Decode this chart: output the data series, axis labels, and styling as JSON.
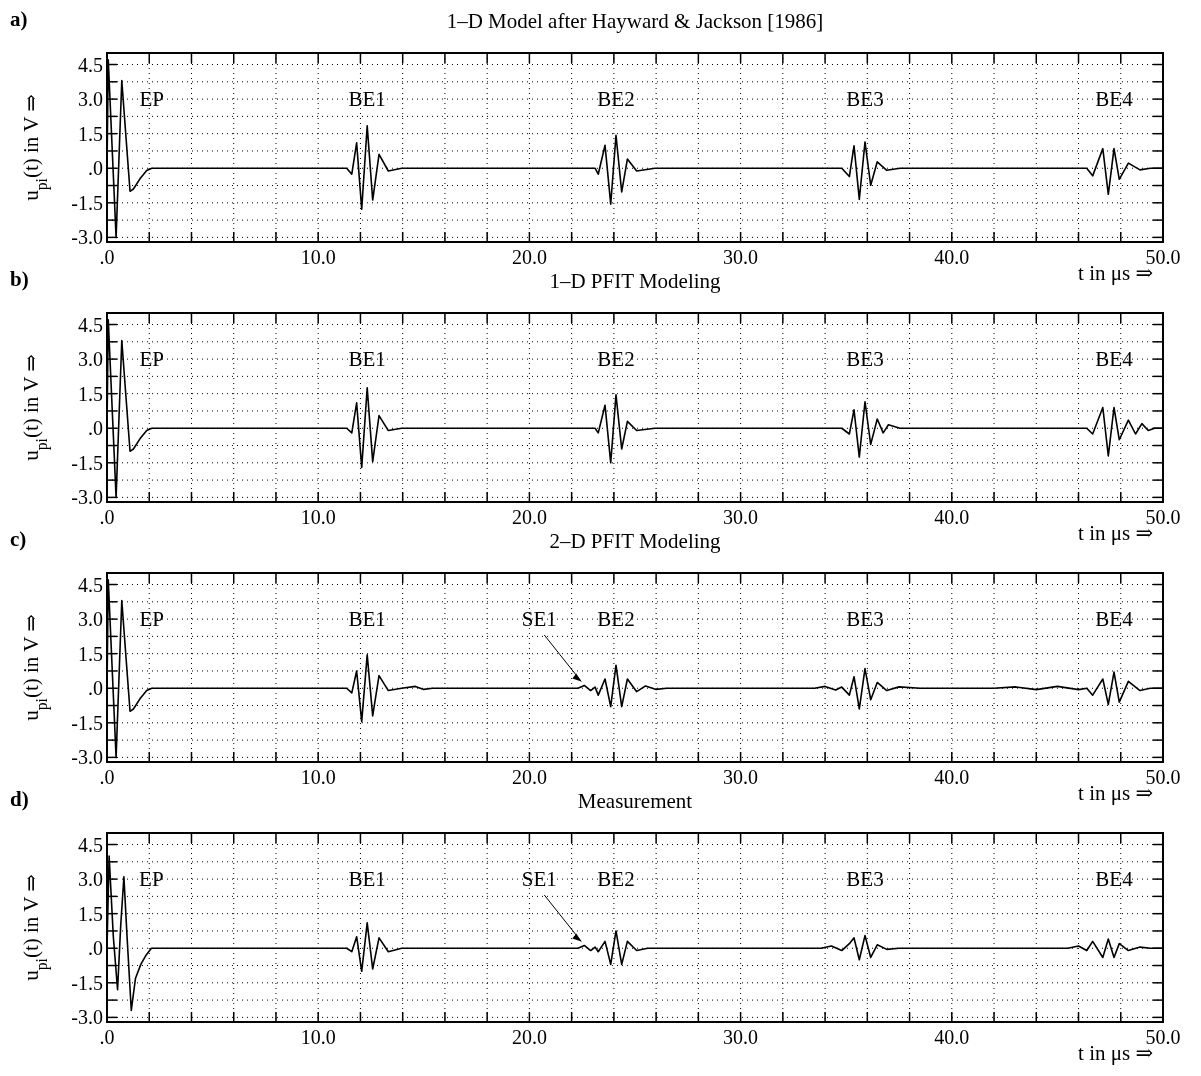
{
  "chart_data": [
    {
      "type": "line",
      "title": "1–D Model after Hayward & Jackson [1986]",
      "xlabel": "t in μs ⇒",
      "ylabel": "u$_{pi}$(t) in V ⇒",
      "xlim": [
        0,
        50
      ],
      "ylim": [
        -3.2,
        5.0
      ],
      "xticks": [
        {
          "value": 0,
          "label": ".0"
        },
        {
          "value": 2,
          "label": null
        },
        {
          "value": 4,
          "label": null
        },
        {
          "value": 6,
          "label": null
        },
        {
          "value": 8,
          "label": null
        },
        {
          "value": 10,
          "label": "10.0"
        },
        {
          "value": 12,
          "label": null
        },
        {
          "value": 14,
          "label": null
        },
        {
          "value": 16,
          "label": null
        },
        {
          "value": 18,
          "label": null
        },
        {
          "value": 20,
          "label": "20.0"
        },
        {
          "value": 22,
          "label": null
        },
        {
          "value": 24,
          "label": null
        },
        {
          "value": 26,
          "label": null
        },
        {
          "value": 28,
          "label": null
        },
        {
          "value": 30,
          "label": "30.0"
        },
        {
          "value": 32,
          "label": null
        },
        {
          "value": 34,
          "label": null
        },
        {
          "value": 36,
          "label": null
        },
        {
          "value": 38,
          "label": null
        },
        {
          "value": 40,
          "label": "40.0"
        },
        {
          "value": 42,
          "label": null
        },
        {
          "value": 44,
          "label": null
        },
        {
          "value": 46,
          "label": null
        },
        {
          "value": 48,
          "label": null
        },
        {
          "value": 50,
          "label": "50.0"
        }
      ],
      "yticks": [
        {
          "value": -3,
          "label": "-3.0"
        },
        {
          "value": -2.25,
          "label": null
        },
        {
          "value": -1.5,
          "label": "-1.5"
        },
        {
          "value": -0.75,
          "label": null
        },
        {
          "value": 0,
          "label": ".0"
        },
        {
          "value": 0.75,
          "label": null
        },
        {
          "value": 1.5,
          "label": "1.5"
        },
        {
          "value": 2.25,
          "label": null
        },
        {
          "value": 3,
          "label": "3.0"
        },
        {
          "value": 3.75,
          "label": null
        },
        {
          "value": 4.5,
          "label": "4.5"
        }
      ],
      "grid": true,
      "annotations": [
        "a)",
        {
          "text": "EP",
          "x": 2.12,
          "y": 0
        },
        {
          "text": "BE1",
          "x": 12.32,
          "y": 1.84
        },
        {
          "text": "BE2",
          "x": 24.1,
          "y": 1.43
        },
        {
          "text": "BE3",
          "x": 35.89,
          "y": 1.14
        },
        {
          "text": "BE4",
          "x": 47.68,
          "y": 0.85
        }
      ],
      "series": [
        {
          "color": "#000000",
          "x": [
            0,
            0.06,
            0.43,
            0.7,
            0.93,
            1.02,
            1.09,
            1.25,
            1.56,
            1.88,
            2.12,
            11.35,
            11.59,
            11.82,
            12.06,
            12.32,
            12.58,
            12.88,
            13.32,
            13.95,
            23.11,
            23.26,
            23.58,
            23.85,
            24.1,
            24.37,
            24.64,
            25.08,
            25.95,
            34.79,
            35.15,
            35.37,
            35.62,
            35.89,
            36.16,
            36.47,
            36.92,
            37.55,
            46.39,
            46.67,
            47.15,
            47.41,
            47.68,
            47.93,
            48.36,
            48.91,
            49.4,
            50
          ],
          "values": [
            0,
            4.7,
            -3.0,
            3.8,
            null,
            null,
            -1.0,
            -0.9,
            -0.46,
            -0.1,
            0,
            0,
            -0.26,
            1.1,
            -1.78,
            1.84,
            -1.38,
            0.6,
            -0.12,
            0,
            0,
            -0.26,
            1.0,
            -1.56,
            1.43,
            -1.03,
            0.4,
            -0.12,
            0,
            0,
            -0.36,
            0.97,
            -1.35,
            1.14,
            -0.74,
            0.28,
            -0.09,
            0,
            0,
            -0.33,
            0.85,
            -1.13,
            0.85,
            -0.48,
            0.22,
            -0.07,
            0,
            0
          ]
        }
      ]
    },
    {
      "type": "line",
      "title": "1–D PFIT Modeling",
      "xlabel": "t in μs ⇒",
      "ylabel": "u$_{pi}$(t) in V ⇒",
      "xlim": [
        0,
        50
      ],
      "ylim": [
        -3.2,
        5.0
      ],
      "xticks": [
        {
          "value": 0,
          "label": ".0"
        },
        {
          "value": 2,
          "label": null
        },
        {
          "value": 4,
          "label": null
        },
        {
          "value": 6,
          "label": null
        },
        {
          "value": 8,
          "label": null
        },
        {
          "value": 10,
          "label": "10.0"
        },
        {
          "value": 12,
          "label": null
        },
        {
          "value": 14,
          "label": null
        },
        {
          "value": 16,
          "label": null
        },
        {
          "value": 18,
          "label": null
        },
        {
          "value": 20,
          "label": "20.0"
        },
        {
          "value": 22,
          "label": null
        },
        {
          "value": 24,
          "label": null
        },
        {
          "value": 26,
          "label": null
        },
        {
          "value": 28,
          "label": null
        },
        {
          "value": 30,
          "label": "30.0"
        },
        {
          "value": 32,
          "label": null
        },
        {
          "value": 34,
          "label": null
        },
        {
          "value": 36,
          "label": null
        },
        {
          "value": 38,
          "label": null
        },
        {
          "value": 40,
          "label": "40.0"
        },
        {
          "value": 42,
          "label": null
        },
        {
          "value": 44,
          "label": null
        },
        {
          "value": 46,
          "label": null
        },
        {
          "value": 48,
          "label": null
        },
        {
          "value": 50,
          "label": "50.0"
        }
      ],
      "yticks": [
        {
          "value": -3,
          "label": "-3.0"
        },
        {
          "value": -2.25,
          "label": null
        },
        {
          "value": -1.5,
          "label": "-1.5"
        },
        {
          "value": -0.75,
          "label": null
        },
        {
          "value": 0,
          "label": ".0"
        },
        {
          "value": 0.75,
          "label": null
        },
        {
          "value": 1.5,
          "label": "1.5"
        },
        {
          "value": 2.25,
          "label": null
        },
        {
          "value": 3,
          "label": "3.0"
        },
        {
          "value": 3.75,
          "label": null
        },
        {
          "value": 4.5,
          "label": "4.5"
        }
      ],
      "grid": true,
      "annotations": [
        "b)",
        {
          "text": "EP",
          "x": 2.12,
          "y": 0
        },
        {
          "text": "BE1",
          "x": 12.32,
          "y": 1.75
        },
        {
          "text": "BE2",
          "x": 24.1,
          "y": 1.45
        },
        {
          "text": "BE3",
          "x": 35.89,
          "y": 1.15
        },
        {
          "text": "BE4",
          "x": 47.68,
          "y": 0.9
        }
      ],
      "series": [
        {
          "color": "#000000",
          "x": [
            0,
            0.06,
            0.43,
            0.7,
            0.93,
            1.02,
            1.09,
            1.25,
            1.56,
            1.88,
            2.12,
            11.35,
            11.59,
            11.82,
            12.06,
            12.32,
            12.58,
            12.88,
            13.32,
            13.95,
            23.11,
            23.26,
            23.58,
            23.85,
            24.1,
            24.37,
            24.64,
            25.08,
            25.95,
            34.79,
            35.15,
            35.37,
            35.62,
            35.89,
            36.16,
            36.47,
            36.75,
            37.0,
            37.55,
            46.39,
            46.67,
            47.15,
            47.41,
            47.68,
            47.93,
            48.36,
            48.7,
            49.0,
            49.3,
            49.6,
            50
          ],
          "values": [
            0,
            4.7,
            -3.0,
            3.8,
            null,
            null,
            -1.0,
            -0.9,
            -0.46,
            -0.1,
            0,
            0,
            -0.2,
            1.1,
            -1.7,
            1.75,
            -1.45,
            0.55,
            -0.1,
            0,
            0,
            -0.2,
            1.0,
            -1.5,
            1.45,
            -0.9,
            0.3,
            -0.1,
            0,
            0,
            -0.25,
            0.8,
            -1.25,
            1.15,
            -0.7,
            0.4,
            -0.2,
            0.15,
            0,
            0,
            -0.25,
            0.9,
            -1.2,
            0.9,
            -0.5,
            0.35,
            -0.25,
            0.2,
            -0.1,
            0,
            0
          ]
        }
      ]
    },
    {
      "type": "line",
      "title": "2–D PFIT Modeling",
      "xlabel": "t in μs ⇒",
      "ylabel": "u$_{pi}$(t) in V ⇒",
      "xlim": [
        0,
        50
      ],
      "ylim": [
        -3.2,
        5.0
      ],
      "xticks": [
        {
          "value": 0,
          "label": ".0"
        },
        {
          "value": 2,
          "label": null
        },
        {
          "value": 4,
          "label": null
        },
        {
          "value": 6,
          "label": null
        },
        {
          "value": 8,
          "label": null
        },
        {
          "value": 10,
          "label": "10.0"
        },
        {
          "value": 12,
          "label": null
        },
        {
          "value": 14,
          "label": null
        },
        {
          "value": 16,
          "label": null
        },
        {
          "value": 18,
          "label": null
        },
        {
          "value": 20,
          "label": "20.0"
        },
        {
          "value": 22,
          "label": null
        },
        {
          "value": 24,
          "label": null
        },
        {
          "value": 26,
          "label": null
        },
        {
          "value": 28,
          "label": null
        },
        {
          "value": 30,
          "label": "30.0"
        },
        {
          "value": 32,
          "label": null
        },
        {
          "value": 34,
          "label": null
        },
        {
          "value": 36,
          "label": null
        },
        {
          "value": 38,
          "label": null
        },
        {
          "value": 40,
          "label": "40.0"
        },
        {
          "value": 42,
          "label": null
        },
        {
          "value": 44,
          "label": null
        },
        {
          "value": 46,
          "label": null
        },
        {
          "value": 48,
          "label": null
        },
        {
          "value": 50,
          "label": "50.0"
        }
      ],
      "yticks": [
        {
          "value": -3,
          "label": "-3.0"
        },
        {
          "value": -2.25,
          "label": null
        },
        {
          "value": -1.5,
          "label": "-1.5"
        },
        {
          "value": -0.75,
          "label": null
        },
        {
          "value": 0,
          "label": ".0"
        },
        {
          "value": 0.75,
          "label": null
        },
        {
          "value": 1.5,
          "label": "1.5"
        },
        {
          "value": 2.25,
          "label": null
        },
        {
          "value": 3,
          "label": "3.0"
        },
        {
          "value": 3.75,
          "label": null
        },
        {
          "value": 4.5,
          "label": "4.5"
        }
      ],
      "grid": true,
      "annotations": [
        "c)",
        {
          "text": "EP",
          "x": 2.12,
          "y": 0
        },
        {
          "text": "BE1",
          "x": 12.32,
          "y": 1.45
        },
        {
          "text": "SE1",
          "x": 22.6,
          "y": 0.12
        },
        {
          "text": "BE2",
          "x": 24.1,
          "y": 1.0
        },
        {
          "text": "BE3",
          "x": 35.89,
          "y": 0.85
        },
        {
          "text": "BE4",
          "x": 47.68,
          "y": 0.7
        }
      ],
      "series": [
        {
          "color": "#000000",
          "x": [
            0,
            0.06,
            0.43,
            0.7,
            0.93,
            1.02,
            1.09,
            1.25,
            1.56,
            1.88,
            2.12,
            11.35,
            11.59,
            11.82,
            12.06,
            12.32,
            12.58,
            12.88,
            13.32,
            13.95,
            14.6,
            15.0,
            15.4,
            22.3,
            22.6,
            22.9,
            23.11,
            23.26,
            23.58,
            23.85,
            24.1,
            24.37,
            24.64,
            25.08,
            25.5,
            26.0,
            26.5,
            33.5,
            34.0,
            34.5,
            34.79,
            35.15,
            35.37,
            35.62,
            35.89,
            36.16,
            36.47,
            36.92,
            37.5,
            38.5,
            42.0,
            43.0,
            44.0,
            45.0,
            46.0,
            46.39,
            46.67,
            47.15,
            47.41,
            47.68,
            47.93,
            48.36,
            48.91,
            49.4,
            50
          ],
          "values": [
            0,
            4.7,
            -3.0,
            3.8,
            null,
            null,
            -1.0,
            -0.9,
            -0.46,
            -0.1,
            0,
            0,
            -0.2,
            0.75,
            -1.45,
            1.45,
            -1.2,
            0.55,
            -0.1,
            0,
            0.08,
            -0.05,
            0,
            0,
            0.12,
            -0.1,
            0.05,
            -0.3,
            0.4,
            -0.8,
            1.0,
            -0.8,
            0.4,
            -0.15,
            0.1,
            -0.05,
            0,
            0,
            0.08,
            -0.08,
            0.05,
            -0.3,
            0.5,
            -0.9,
            0.85,
            -0.5,
            0.25,
            -0.1,
            0.06,
            0,
            0,
            0.06,
            -0.06,
            0.08,
            -0.06,
            0,
            -0.3,
            0.4,
            -0.7,
            0.7,
            -0.6,
            0.3,
            -0.1,
            0,
            0
          ]
        }
      ]
    },
    {
      "type": "line",
      "title": "Measurement",
      "xlabel": "t in μs ⇒",
      "ylabel": "u$_{pi}$(t) in V ⇒",
      "xlim": [
        0,
        50
      ],
      "ylim": [
        -3.2,
        5.0
      ],
      "xticks": [
        {
          "value": 0,
          "label": ".0"
        },
        {
          "value": 2,
          "label": null
        },
        {
          "value": 4,
          "label": null
        },
        {
          "value": 6,
          "label": null
        },
        {
          "value": 8,
          "label": null
        },
        {
          "value": 10,
          "label": "10.0"
        },
        {
          "value": 12,
          "label": null
        },
        {
          "value": 14,
          "label": null
        },
        {
          "value": 16,
          "label": null
        },
        {
          "value": 18,
          "label": null
        },
        {
          "value": 20,
          "label": "20.0"
        },
        {
          "value": 22,
          "label": null
        },
        {
          "value": 24,
          "label": null
        },
        {
          "value": 26,
          "label": null
        },
        {
          "value": 28,
          "label": null
        },
        {
          "value": 30,
          "label": "30.0"
        },
        {
          "value": 32,
          "label": null
        },
        {
          "value": 34,
          "label": null
        },
        {
          "value": 36,
          "label": null
        },
        {
          "value": 38,
          "label": null
        },
        {
          "value": 40,
          "label": "40.0"
        },
        {
          "value": 42,
          "label": null
        },
        {
          "value": 44,
          "label": null
        },
        {
          "value": 46,
          "label": null
        },
        {
          "value": 48,
          "label": null
        },
        {
          "value": 50,
          "label": "50.0"
        }
      ],
      "yticks": [
        {
          "value": -3,
          "label": "-3.0"
        },
        {
          "value": -2.25,
          "label": null
        },
        {
          "value": -1.5,
          "label": "-1.5"
        },
        {
          "value": -0.75,
          "label": null
        },
        {
          "value": 0,
          "label": ".0"
        },
        {
          "value": 0.75,
          "label": null
        },
        {
          "value": 1.5,
          "label": "1.5"
        },
        {
          "value": 2.25,
          "label": null
        },
        {
          "value": 3,
          "label": "3.0"
        },
        {
          "value": 3.75,
          "label": null
        },
        {
          "value": 4.5,
          "label": "4.5"
        }
      ],
      "grid": true,
      "annotations": [
        "d)",
        {
          "text": "EP",
          "x": 2.1,
          "y": 0
        },
        {
          "text": "BE1",
          "x": 12.32,
          "y": 1.1
        },
        {
          "text": "SE1",
          "x": 22.6,
          "y": 0.12
        },
        {
          "text": "BE2",
          "x": 24.1,
          "y": 0.75
        },
        {
          "text": "BE3",
          "x": 35.89,
          "y": 0.55
        },
        {
          "text": "BE4",
          "x": 47.68,
          "y": 0.4
        }
      ],
      "series": [
        {
          "color": "#000000",
          "x": [
            0,
            0.1,
            0.3,
            0.5,
            0.65,
            0.8,
            0.95,
            1.15,
            1.35,
            1.6,
            1.85,
            2.1,
            11.35,
            11.59,
            11.82,
            12.06,
            12.32,
            12.58,
            12.88,
            13.32,
            13.95,
            22.3,
            22.6,
            22.9,
            23.11,
            23.26,
            23.58,
            23.85,
            24.1,
            24.37,
            24.64,
            25.08,
            25.6,
            33.8,
            34.3,
            34.79,
            35.15,
            35.37,
            35.62,
            35.89,
            36.16,
            36.47,
            36.92,
            37.5,
            45.5,
            46.0,
            46.39,
            46.67,
            47.15,
            47.41,
            47.68,
            47.93,
            48.36,
            48.91,
            49.4,
            50
          ],
          "values": [
            0,
            4.0,
            0.5,
            -1.8,
            1.0,
            3.1,
            0.5,
            -2.7,
            -1.3,
            -0.7,
            -0.3,
            0,
            0,
            -0.15,
            0.5,
            -1.0,
            1.1,
            -0.9,
            0.45,
            -0.15,
            0,
            0,
            0.12,
            -0.1,
            0.05,
            -0.15,
            0.3,
            -0.7,
            0.75,
            -0.7,
            0.3,
            -0.1,
            0,
            0,
            0.1,
            -0.1,
            0.2,
            0.45,
            -0.5,
            0.55,
            -0.4,
            0.15,
            -0.05,
            0,
            0,
            0.1,
            -0.1,
            0.3,
            -0.4,
            0.4,
            -0.4,
            0.2,
            -0.1,
            0.05,
            0,
            0
          ]
        }
      ]
    }
  ]
}
